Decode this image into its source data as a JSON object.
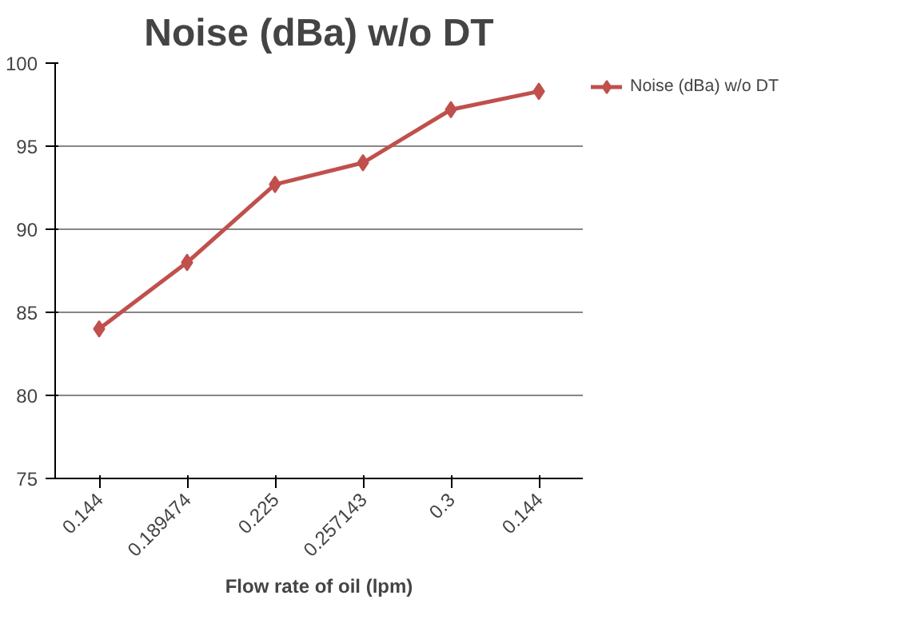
{
  "chart_data": {
    "type": "line",
    "title": "Noise (dBa) w/o DT",
    "xlabel": "Flow rate of oil (lpm)",
    "categories": [
      "0.144",
      "0.189474",
      "0.225",
      "0.257143",
      "0.3",
      "0.144"
    ],
    "series": [
      {
        "name": "Noise (dBa) w/o DT",
        "color": "#c0504d",
        "values": [
          84,
          88,
          92.7,
          94,
          97.2,
          98.3
        ]
      }
    ],
    "ylim": [
      75,
      100
    ],
    "yticks": [
      75,
      80,
      85,
      90,
      95,
      100
    ],
    "grid": "y",
    "legend": "right",
    "marker": "diamond",
    "line_style": "solid"
  }
}
